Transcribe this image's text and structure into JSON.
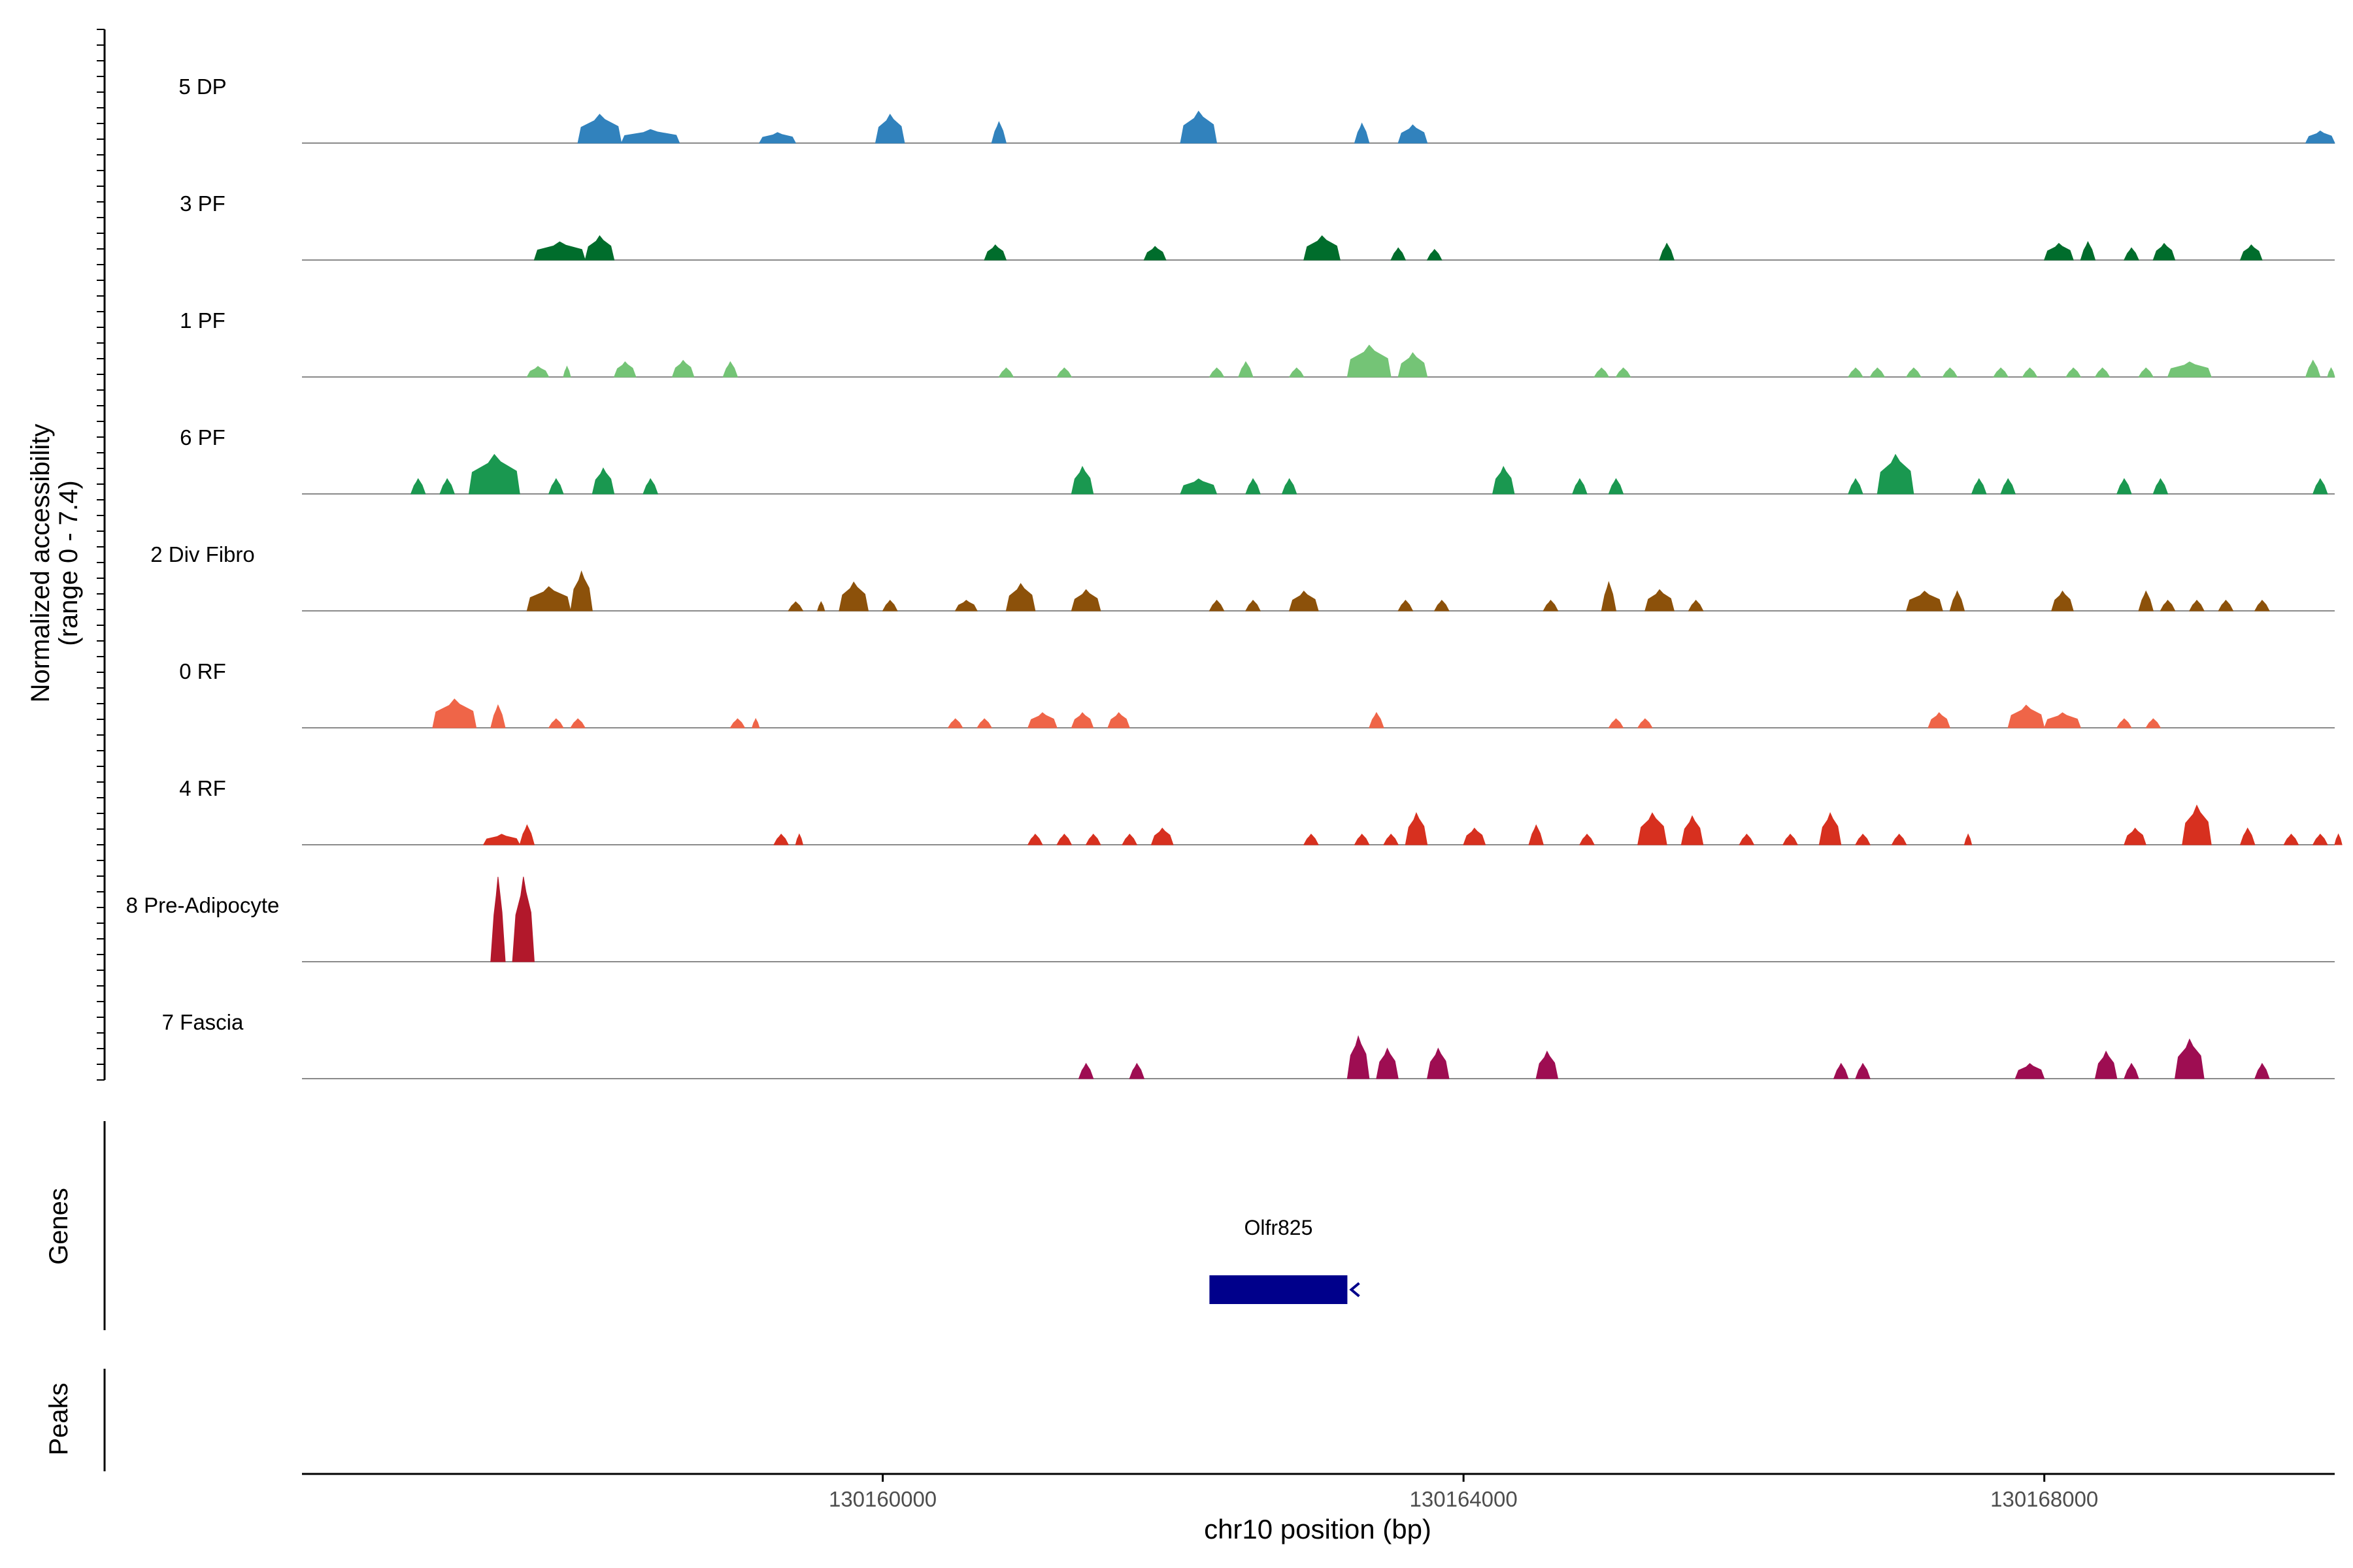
{
  "chart_data": {
    "type": "area",
    "title": "",
    "xlabel": "chr10 position (bp)",
    "ylabel_line1": "Normalized accessibility",
    "ylabel_line2": "(range 0 - 7.4)",
    "genes_label": "Genes",
    "peaks_label": "Peaks",
    "xlim": [
      130156000,
      130170000
    ],
    "x_ticks": [
      130160000,
      130164000,
      130168000
    ],
    "x_tick_labels": [
      "130160000",
      "130164000",
      "130168000"
    ],
    "ylim": [
      0,
      7.4
    ],
    "tracks": [
      {
        "name": "5 DP",
        "color": "#3182bd",
        "peaks": [
          [
            130157900,
            130158200,
            1.9
          ],
          [
            130158200,
            130158600,
            0.9
          ],
          [
            130159150,
            130159400,
            0.7
          ],
          [
            130159950,
            130160150,
            1.9
          ],
          [
            130160750,
            130160850,
            1.4
          ],
          [
            130162050,
            130162300,
            2.1
          ],
          [
            130163250,
            130163350,
            1.3
          ],
          [
            130163550,
            130163750,
            1.2
          ],
          [
            130169800,
            130170000,
            0.8
          ]
        ]
      },
      {
        "name": "3 PF",
        "color": "#006d2c",
        "peaks": [
          [
            130157600,
            130157950,
            1.2
          ],
          [
            130157950,
            130158150,
            1.6
          ],
          [
            130160700,
            130160850,
            1.0
          ],
          [
            130161800,
            130161950,
            0.9
          ],
          [
            130162900,
            130163150,
            1.6
          ],
          [
            130163500,
            130163600,
            0.8
          ],
          [
            130163750,
            130163850,
            0.7
          ],
          [
            130165350,
            130165450,
            1.1
          ],
          [
            130168000,
            130168200,
            1.1
          ],
          [
            130168250,
            130168350,
            1.2
          ],
          [
            130168550,
            130168650,
            0.8
          ],
          [
            130168750,
            130168900,
            1.1
          ],
          [
            130169350,
            130169500,
            1.0
          ]
        ]
      },
      {
        "name": "1 PF",
        "color": "#74c476",
        "peaks": [
          [
            130157550,
            130157700,
            0.7
          ],
          [
            130157800,
            130157850,
            0.7
          ],
          [
            130158150,
            130158300,
            1.0
          ],
          [
            130158550,
            130158700,
            1.1
          ],
          [
            130158900,
            130159000,
            1.0
          ],
          [
            130160800,
            130160900,
            0.6
          ],
          [
            130161200,
            130161300,
            0.6
          ],
          [
            130162250,
            130162350,
            0.6
          ],
          [
            130162450,
            130162550,
            1.0
          ],
          [
            130162800,
            130162900,
            0.6
          ],
          [
            130163200,
            130163500,
            2.1
          ],
          [
            130163550,
            130163750,
            1.6
          ],
          [
            130164900,
            130165000,
            0.6
          ],
          [
            130165050,
            130165150,
            0.6
          ],
          [
            130166650,
            130166750,
            0.6
          ],
          [
            130166800,
            130166900,
            0.6
          ],
          [
            130167050,
            130167150,
            0.6
          ],
          [
            130167300,
            130167400,
            0.6
          ],
          [
            130167650,
            130167750,
            0.6
          ],
          [
            130167850,
            130167950,
            0.6
          ],
          [
            130168150,
            130168250,
            0.6
          ],
          [
            130168350,
            130168450,
            0.6
          ],
          [
            130168650,
            130168750,
            0.6
          ],
          [
            130168850,
            130169150,
            1.0
          ],
          [
            130169800,
            130169900,
            1.1
          ],
          [
            130169950,
            130170000,
            0.6
          ]
        ]
      },
      {
        "name": "6 PF",
        "color": "#1a9850",
        "peaks": [
          [
            130156750,
            130156850,
            1.0
          ],
          [
            130156950,
            130157050,
            1.0
          ],
          [
            130157150,
            130157500,
            2.6
          ],
          [
            130157700,
            130157800,
            1.0
          ],
          [
            130158000,
            130158150,
            1.7
          ],
          [
            130158350,
            130158450,
            1.0
          ],
          [
            130161300,
            130161450,
            1.8
          ],
          [
            130162050,
            130162300,
            1.0
          ],
          [
            130162500,
            130162600,
            1.0
          ],
          [
            130162750,
            130162850,
            1.0
          ],
          [
            130164200,
            130164350,
            1.8
          ],
          [
            130164750,
            130164850,
            1.0
          ],
          [
            130165000,
            130165100,
            1.0
          ],
          [
            130166650,
            130166750,
            1.0
          ],
          [
            130166850,
            130167100,
            2.6
          ],
          [
            130167500,
            130167600,
            1.0
          ],
          [
            130167700,
            130167800,
            1.0
          ],
          [
            130168500,
            130168600,
            1.0
          ],
          [
            130168750,
            130168850,
            1.0
          ],
          [
            130169850,
            130169950,
            1.0
          ]
        ]
      },
      {
        "name": "2 Div Fibro",
        "color": "#8c510a",
        "peaks": [
          [
            130157550,
            130157850,
            1.6
          ],
          [
            130157850,
            130158000,
            2.6
          ],
          [
            130159350,
            130159450,
            0.6
          ],
          [
            130159550,
            130159600,
            0.6
          ],
          [
            130159700,
            130159900,
            1.9
          ],
          [
            130160000,
            130160100,
            0.7
          ],
          [
            130160500,
            130160650,
            0.7
          ],
          [
            130160850,
            130161050,
            1.8
          ],
          [
            130161300,
            130161500,
            1.4
          ],
          [
            130162250,
            130162350,
            0.7
          ],
          [
            130162500,
            130162600,
            0.7
          ],
          [
            130162800,
            130163000,
            1.3
          ],
          [
            130163550,
            130163650,
            0.7
          ],
          [
            130163800,
            130163900,
            0.7
          ],
          [
            130164550,
            130164650,
            0.7
          ],
          [
            130164950,
            130165050,
            1.9
          ],
          [
            130165250,
            130165450,
            1.4
          ],
          [
            130165550,
            130165650,
            0.7
          ],
          [
            130167050,
            130167300,
            1.3
          ],
          [
            130167350,
            130167450,
            1.3
          ],
          [
            130168050,
            130168200,
            1.3
          ],
          [
            130168650,
            130168750,
            1.3
          ],
          [
            130168800,
            130168900,
            0.7
          ],
          [
            130169000,
            130169100,
            0.7
          ],
          [
            130169200,
            130169300,
            0.7
          ],
          [
            130169450,
            130169550,
            0.7
          ]
        ]
      },
      {
        "name": "0 RF",
        "color": "#ef6548",
        "peaks": [
          [
            130156900,
            130157200,
            1.9
          ],
          [
            130157300,
            130157400,
            1.5
          ],
          [
            130157700,
            130157800,
            0.6
          ],
          [
            130157850,
            130157950,
            0.6
          ],
          [
            130158950,
            130159050,
            0.6
          ],
          [
            130159100,
            130159150,
            0.6
          ],
          [
            130160450,
            130160550,
            0.6
          ],
          [
            130160650,
            130160750,
            0.6
          ],
          [
            130161000,
            130161200,
            1.0
          ],
          [
            130161300,
            130161450,
            1.0
          ],
          [
            130161550,
            130161700,
            1.0
          ],
          [
            130163350,
            130163450,
            1.0
          ],
          [
            130165000,
            130165100,
            0.6
          ],
          [
            130165200,
            130165300,
            0.6
          ],
          [
            130167200,
            130167350,
            1.0
          ],
          [
            130167750,
            130168000,
            1.5
          ],
          [
            130168000,
            130168250,
            1.0
          ],
          [
            130168500,
            130168600,
            0.6
          ],
          [
            130168700,
            130168800,
            0.6
          ]
        ]
      },
      {
        "name": "4 RF",
        "color": "#d7301f",
        "peaks": [
          [
            130157250,
            130157500,
            0.7
          ],
          [
            130157500,
            130157600,
            1.3
          ],
          [
            130159250,
            130159350,
            0.7
          ],
          [
            130159400,
            130159450,
            0.7
          ],
          [
            130161000,
            130161100,
            0.7
          ],
          [
            130161200,
            130161300,
            0.7
          ],
          [
            130161400,
            130161500,
            0.7
          ],
          [
            130161650,
            130161750,
            0.7
          ],
          [
            130161850,
            130162000,
            1.1
          ],
          [
            130162900,
            130163000,
            0.7
          ],
          [
            130163250,
            130163350,
            0.7
          ],
          [
            130163450,
            130163550,
            0.7
          ],
          [
            130163600,
            130163750,
            2.1
          ],
          [
            130164000,
            130164150,
            1.1
          ],
          [
            130164450,
            130164550,
            1.3
          ],
          [
            130164800,
            130164900,
            0.7
          ],
          [
            130165200,
            130165400,
            2.1
          ],
          [
            130165500,
            130165650,
            1.9
          ],
          [
            130165900,
            130166000,
            0.7
          ],
          [
            130166200,
            130166300,
            0.7
          ],
          [
            130166450,
            130166600,
            2.1
          ],
          [
            130166700,
            130166800,
            0.7
          ],
          [
            130166950,
            130167050,
            0.7
          ],
          [
            130167450,
            130167500,
            0.7
          ],
          [
            130168550,
            130168700,
            1.1
          ],
          [
            130168950,
            130169150,
            2.6
          ],
          [
            130169350,
            130169450,
            1.1
          ],
          [
            130169650,
            130169750,
            0.7
          ],
          [
            130169850,
            130169950,
            0.7
          ],
          [
            130170000,
            130170050,
            0.7
          ]
        ]
      },
      {
        "name": "8 Pre-Adipocyte",
        "color": "#b2182b",
        "peaks": [
          [
            130157300,
            130157400,
            5.6
          ],
          [
            130157450,
            130157600,
            5.6
          ]
        ]
      },
      {
        "name": "7 Fascia",
        "color": "#9e0d52",
        "peaks": [
          [
            130161350,
            130161450,
            1.0
          ],
          [
            130161700,
            130161800,
            1.0
          ],
          [
            130163200,
            130163350,
            2.8
          ],
          [
            130163400,
            130163550,
            2.0
          ],
          [
            130163750,
            130163900,
            2.0
          ],
          [
            130164500,
            130164650,
            1.8
          ],
          [
            130166550,
            130166650,
            1.0
          ],
          [
            130166700,
            130166800,
            1.0
          ],
          [
            130167800,
            130168000,
            1.0
          ],
          [
            130168350,
            130168500,
            1.8
          ],
          [
            130168550,
            130168650,
            1.0
          ],
          [
            130168900,
            130169100,
            2.6
          ],
          [
            130169450,
            130169550,
            1.0
          ]
        ]
      }
    ],
    "genes": [
      {
        "name": "Olfr825",
        "start": 130162250,
        "end": 130163200,
        "strand": "-",
        "color": "#00008b"
      }
    ]
  }
}
